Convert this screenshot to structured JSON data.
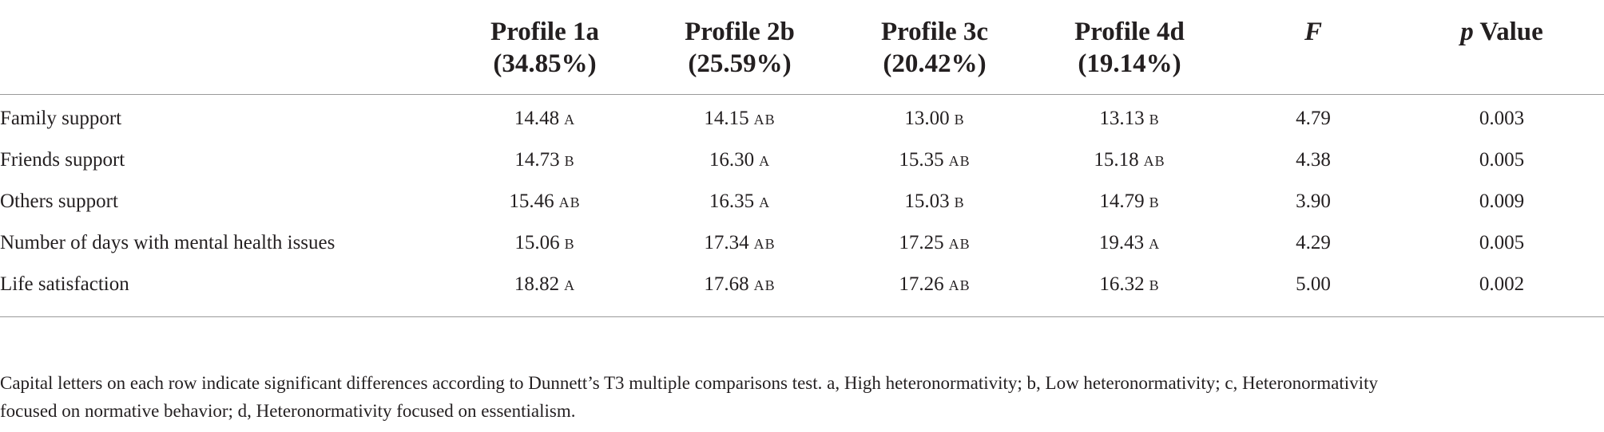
{
  "table": {
    "headers": [
      {
        "line1": "",
        "line2": ""
      },
      {
        "line1": "Profile 1a",
        "line2": "(34.85%)"
      },
      {
        "line1": "Profile 2b",
        "line2": "(25.59%)"
      },
      {
        "line1": "Profile 3c",
        "line2": "(20.42%)"
      },
      {
        "line1": "Profile 4d",
        "line2": "(19.14%)"
      },
      {
        "line1": "F",
        "line2": ""
      },
      {
        "line1_italic": "p",
        "line1_rest": " Value"
      }
    ],
    "rows": [
      {
        "label": "Family support",
        "cells": [
          {
            "v": "14.48",
            "g": "A"
          },
          {
            "v": "14.15",
            "g": "AB"
          },
          {
            "v": "13.00",
            "g": "B"
          },
          {
            "v": "13.13",
            "g": "B"
          }
        ],
        "F": "4.79",
        "p": "0.003"
      },
      {
        "label": "Friends support",
        "cells": [
          {
            "v": "14.73",
            "g": "B"
          },
          {
            "v": "16.30",
            "g": "A"
          },
          {
            "v": "15.35",
            "g": "AB"
          },
          {
            "v": "15.18",
            "g": "AB"
          }
        ],
        "F": "4.38",
        "p": "0.005"
      },
      {
        "label": "Others support",
        "cells": [
          {
            "v": "15.46",
            "g": "AB"
          },
          {
            "v": "16.35",
            "g": "A"
          },
          {
            "v": "15.03",
            "g": "B"
          },
          {
            "v": "14.79",
            "g": "B"
          }
        ],
        "F": "3.90",
        "p": "0.009"
      },
      {
        "label": "Number of days with mental health issues",
        "cells": [
          {
            "v": "15.06",
            "g": "B"
          },
          {
            "v": "17.34",
            "g": "AB"
          },
          {
            "v": "17.25",
            "g": "AB"
          },
          {
            "v": "19.43",
            "g": "A"
          }
        ],
        "F": "4.29",
        "p": "0.005"
      },
      {
        "label": "Life satisfaction",
        "cells": [
          {
            "v": "18.82",
            "g": "A"
          },
          {
            "v": "17.68",
            "g": "AB"
          },
          {
            "v": "17.26",
            "g": "AB"
          },
          {
            "v": "16.32",
            "g": "B"
          }
        ],
        "F": "5.00",
        "p": "0.002"
      }
    ]
  },
  "footnote": {
    "line1": "Capital letters on each row indicate significant differences according to Dunnett’s T3 multiple comparisons test. a, High heteronormativity; b, Low heteronormativity; c, Heteronormativity",
    "line2": "focused on normative behavior; d, Heteronormativity focused on essentialism."
  }
}
